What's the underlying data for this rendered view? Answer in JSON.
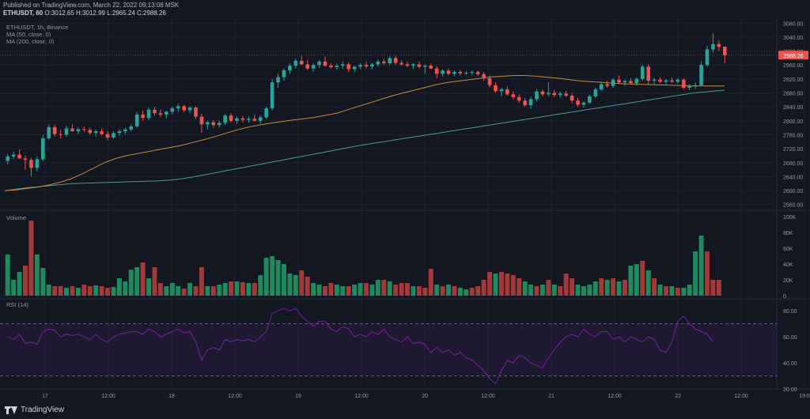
{
  "header": {
    "published": "Published on TradingView.com, March 22, 2022 09:13:08 MSK",
    "symbol": "ETHUSDT, 60",
    "ohlc": "O:3012.65 H:3012.99 L:2965.24 C:2988.26"
  },
  "legend": {
    "symbol": "ETHUSDT, 1h, Binance",
    "ma50": "MA (50, close, 0)",
    "ma200": "MA (200, close, 0)",
    "volume": "Volume",
    "rsi": "RSI (14)"
  },
  "footer": {
    "brand": "TradingView"
  },
  "colors": {
    "up": "#26a69a",
    "down": "#ef5350",
    "ma50": "#c58a3a",
    "ma200": "#4a9a8e",
    "rsi": "#7b1fa2",
    "background": "#131722"
  },
  "chart_data": [
    {
      "type": "candlestick",
      "y_ticks": [
        "3080.00",
        "3040.00",
        "3000.00",
        "2960.00",
        "2920.00",
        "2880.00",
        "2840.00",
        "2800.00",
        "2760.00",
        "2720.00",
        "2680.00",
        "2640.00",
        "2600.00",
        "2560.00"
      ],
      "ylim": [
        2548,
        3092
      ],
      "last_price": "2988.26",
      "candles": [
        [
          2685,
          2705,
          2675,
          2698
        ],
        [
          2698,
          2712,
          2690,
          2703
        ],
        [
          2703,
          2718,
          2697,
          2692
        ],
        [
          2692,
          2700,
          2660,
          2688
        ],
        [
          2688,
          2694,
          2640,
          2665
        ],
        [
          2665,
          2698,
          2655,
          2690
        ],
        [
          2690,
          2760,
          2685,
          2750
        ],
        [
          2750,
          2790,
          2745,
          2782
        ],
        [
          2782,
          2790,
          2755,
          2762
        ],
        [
          2762,
          2775,
          2750,
          2760
        ],
        [
          2760,
          2785,
          2755,
          2778
        ],
        [
          2778,
          2790,
          2768,
          2770
        ],
        [
          2770,
          2782,
          2762,
          2776
        ],
        [
          2776,
          2784,
          2768,
          2774
        ],
        [
          2774,
          2780,
          2760,
          2765
        ],
        [
          2765,
          2775,
          2755,
          2770
        ],
        [
          2770,
          2778,
          2758,
          2762
        ],
        [
          2762,
          2770,
          2745,
          2752
        ],
        [
          2752,
          2770,
          2748,
          2765
        ],
        [
          2765,
          2775,
          2758,
          2770
        ],
        [
          2770,
          2780,
          2762,
          2775
        ],
        [
          2775,
          2790,
          2770,
          2784
        ],
        [
          2784,
          2825,
          2780,
          2818
        ],
        [
          2818,
          2830,
          2800,
          2808
        ],
        [
          2808,
          2838,
          2802,
          2832
        ],
        [
          2832,
          2840,
          2815,
          2822
        ],
        [
          2822,
          2832,
          2810,
          2818
        ],
        [
          2818,
          2830,
          2808,
          2826
        ],
        [
          2826,
          2840,
          2818,
          2836
        ],
        [
          2836,
          2848,
          2825,
          2842
        ],
        [
          2842,
          2846,
          2825,
          2830
        ],
        [
          2830,
          2842,
          2822,
          2838
        ],
        [
          2838,
          2842,
          2805,
          2812
        ],
        [
          2812,
          2820,
          2765,
          2790
        ],
        [
          2790,
          2800,
          2775,
          2796
        ],
        [
          2796,
          2802,
          2780,
          2788
        ],
        [
          2788,
          2800,
          2780,
          2794
        ],
        [
          2794,
          2820,
          2788,
          2815
        ],
        [
          2815,
          2822,
          2795,
          2800
        ],
        [
          2800,
          2812,
          2792,
          2807
        ],
        [
          2807,
          2815,
          2795,
          2803
        ],
        [
          2803,
          2812,
          2795,
          2806
        ],
        [
          2806,
          2818,
          2798,
          2800
        ],
        [
          2800,
          2815,
          2792,
          2810
        ],
        [
          2810,
          2840,
          2805,
          2836
        ],
        [
          2836,
          2920,
          2830,
          2910
        ],
        [
          2910,
          2935,
          2895,
          2925
        ],
        [
          2925,
          2950,
          2915,
          2945
        ],
        [
          2945,
          2965,
          2935,
          2958
        ],
        [
          2958,
          2978,
          2950,
          2972
        ],
        [
          2972,
          2988,
          2960,
          2962
        ],
        [
          2962,
          2975,
          2945,
          2950
        ],
        [
          2950,
          2965,
          2940,
          2960
        ],
        [
          2960,
          2974,
          2952,
          2970
        ],
        [
          2970,
          2985,
          2955,
          2958
        ],
        [
          2958,
          2965,
          2950,
          2954
        ],
        [
          2954,
          2964,
          2946,
          2958
        ],
        [
          2958,
          2970,
          2950,
          2962
        ],
        [
          2962,
          2968,
          2940,
          2948
        ],
        [
          2948,
          2958,
          2940,
          2955
        ],
        [
          2955,
          2965,
          2948,
          2960
        ],
        [
          2960,
          2970,
          2950,
          2956
        ],
        [
          2956,
          2966,
          2948,
          2962
        ],
        [
          2962,
          2975,
          2955,
          2970
        ],
        [
          2970,
          2978,
          2960,
          2965
        ],
        [
          2965,
          2985,
          2960,
          2980
        ],
        [
          2980,
          2986,
          2960,
          2966
        ],
        [
          2966,
          2974,
          2958,
          2962
        ],
        [
          2962,
          2970,
          2954,
          2958
        ],
        [
          2958,
          2966,
          2948,
          2962
        ],
        [
          2962,
          2970,
          2950,
          2955
        ],
        [
          2955,
          2962,
          2935,
          2958
        ],
        [
          2958,
          2964,
          2948,
          2950
        ],
        [
          2950,
          2956,
          2922,
          2935
        ],
        [
          2935,
          2948,
          2928,
          2944
        ],
        [
          2944,
          2950,
          2930,
          2935
        ],
        [
          2935,
          2944,
          2928,
          2940
        ],
        [
          2940,
          2945,
          2930,
          2936
        ],
        [
          2936,
          2942,
          2932,
          2938
        ],
        [
          2938,
          2944,
          2932,
          2940
        ],
        [
          2940,
          2944,
          2928,
          2934
        ],
        [
          2934,
          2940,
          2915,
          2922
        ],
        [
          2922,
          2930,
          2895,
          2902
        ],
        [
          2902,
          2910,
          2880,
          2885
        ],
        [
          2885,
          2895,
          2870,
          2890
        ],
        [
          2890,
          2898,
          2872,
          2876
        ],
        [
          2876,
          2884,
          2862,
          2868
        ],
        [
          2868,
          2876,
          2852,
          2858
        ],
        [
          2858,
          2866,
          2840,
          2845
        ],
        [
          2845,
          2870,
          2835,
          2862
        ],
        [
          2862,
          2890,
          2855,
          2884
        ],
        [
          2884,
          2890,
          2870,
          2876
        ],
        [
          2876,
          2910,
          2870,
          2880
        ],
        [
          2880,
          2888,
          2868,
          2874
        ],
        [
          2874,
          2884,
          2866,
          2878
        ],
        [
          2878,
          2886,
          2868,
          2872
        ],
        [
          2872,
          2880,
          2850,
          2858
        ],
        [
          2858,
          2866,
          2840,
          2846
        ],
        [
          2846,
          2856,
          2838,
          2852
        ],
        [
          2852,
          2875,
          2848,
          2870
        ],
        [
          2870,
          2895,
          2865,
          2890
        ],
        [
          2890,
          2910,
          2885,
          2905
        ],
        [
          2905,
          2915,
          2895,
          2900
        ],
        [
          2900,
          2922,
          2895,
          2918
        ],
        [
          2918,
          2930,
          2905,
          2910
        ],
        [
          2910,
          2918,
          2900,
          2914
        ],
        [
          2914,
          2922,
          2905,
          2908
        ],
        [
          2908,
          2925,
          2902,
          2920
        ],
        [
          2920,
          2960,
          2915,
          2955
        ],
        [
          2955,
          2962,
          2905,
          2915
        ],
        [
          2915,
          2924,
          2905,
          2918
        ],
        [
          2918,
          2925,
          2908,
          2912
        ],
        [
          2912,
          2920,
          2904,
          2916
        ],
        [
          2916,
          2924,
          2908,
          2912
        ],
        [
          2912,
          2922,
          2906,
          2918
        ],
        [
          2918,
          2922,
          2890,
          2895
        ],
        [
          2895,
          2905,
          2888,
          2900
        ],
        [
          2900,
          2910,
          2892,
          2902
        ],
        [
          2902,
          2970,
          2900,
          2960
        ],
        [
          2960,
          3015,
          2955,
          3005
        ],
        [
          3005,
          3050,
          2995,
          3020
        ],
        [
          3020,
          3030,
          3000,
          3012
        ],
        [
          3012.65,
          3012.99,
          2965.24,
          2988.26
        ]
      ],
      "ma50": [
        2600,
        2602,
        2606,
        2610,
        2616,
        2624,
        2634,
        2648,
        2664,
        2680,
        2692,
        2700,
        2706,
        2712,
        2718,
        2724,
        2730,
        2738,
        2746,
        2755,
        2765,
        2774,
        2782,
        2788,
        2793,
        2798,
        2802,
        2806,
        2810,
        2816,
        2822,
        2832,
        2842,
        2852,
        2862,
        2872,
        2880,
        2888,
        2896,
        2904,
        2910,
        2914,
        2918,
        2922,
        2926,
        2928,
        2930,
        2930,
        2928,
        2925,
        2922,
        2918,
        2914,
        2912,
        2910,
        2908,
        2906,
        2905,
        2904,
        2903,
        2902,
        2901,
        2900,
        2900,
        2900,
        2900
      ],
      "ma200": [
        2600,
        2604,
        2608,
        2611,
        2614,
        2617,
        2620,
        2621,
        2622,
        2623,
        2624,
        2625,
        2626,
        2627,
        2628,
        2630,
        2634,
        2639,
        2645,
        2651,
        2657,
        2663,
        2669,
        2675,
        2681,
        2687,
        2693,
        2699,
        2705,
        2711,
        2717,
        2723,
        2729,
        2734,
        2739,
        2744,
        2749,
        2754,
        2759,
        2764,
        2769,
        2774,
        2779,
        2784,
        2789,
        2794,
        2799,
        2804,
        2809,
        2814,
        2819,
        2824,
        2829,
        2834,
        2839,
        2844,
        2849,
        2854,
        2859,
        2864,
        2869,
        2874,
        2879,
        2882,
        2885,
        2888
      ],
      "x_ticks": [
        "17",
        "12:00",
        "18",
        "12:00",
        "19",
        "12:00",
        "20",
        "12:00",
        "21",
        "12:00",
        "22",
        "12:00",
        "19:0"
      ]
    },
    {
      "type": "bar",
      "name": "Volume",
      "y_ticks": [
        "100K",
        "80K",
        "60K",
        "40K",
        "20K",
        "0"
      ],
      "ylim": [
        0,
        100000
      ],
      "values": [
        52000,
        20000,
        30000,
        38000,
        95000,
        52000,
        35000,
        14000,
        12000,
        12000,
        10000,
        12000,
        10000,
        14000,
        12000,
        13000,
        12000,
        10000,
        11000,
        22000,
        18000,
        33000,
        36000,
        42000,
        22000,
        36000,
        16000,
        12000,
        16000,
        12000,
        9000,
        16000,
        12000,
        36000,
        12000,
        12000,
        14000,
        16000,
        18000,
        18000,
        17000,
        16000,
        16000,
        26000,
        48000,
        50000,
        45000,
        40000,
        28000,
        26000,
        32000,
        24000,
        16000,
        14000,
        12000,
        16000,
        14000,
        12000,
        12000,
        14000,
        16000,
        16000,
        14000,
        20000,
        20000,
        18000,
        14000,
        16000,
        16000,
        12000,
        12000,
        10000,
        34000,
        14000,
        12000,
        14000,
        12000,
        10000,
        8000,
        10000,
        12000,
        20000,
        30000,
        28000,
        30000,
        28000,
        26000,
        22000,
        18000,
        14000,
        12000,
        14000,
        20000,
        14000,
        12000,
        28000,
        22000,
        14000,
        12000,
        14000,
        18000,
        22000,
        20000,
        22000,
        18000,
        20000,
        38000,
        40000,
        44000,
        32000,
        22000,
        14000,
        12000,
        12000,
        10000,
        10000,
        14000,
        56000,
        76000,
        56000,
        20000,
        20000
      ],
      "colors_up": [
        1,
        1,
        1,
        0,
        0,
        1,
        1,
        1,
        0,
        0,
        1,
        0,
        1,
        0,
        0,
        1,
        0,
        0,
        1,
        1,
        1,
        1,
        1,
        0,
        1,
        0,
        0,
        1,
        1,
        1,
        0,
        1,
        0,
        0,
        1,
        0,
        1,
        1,
        0,
        1,
        0,
        1,
        0,
        1,
        1,
        1,
        1,
        1,
        1,
        1,
        0,
        0,
        1,
        1,
        0,
        0,
        1,
        1,
        0,
        1,
        1,
        0,
        1,
        1,
        0,
        1,
        0,
        0,
        0,
        1,
        0,
        0,
        0,
        1,
        0,
        1,
        0,
        1,
        1,
        0,
        0,
        0,
        0,
        1,
        0,
        0,
        0,
        0,
        1,
        1,
        0,
        1,
        0,
        1,
        0,
        0,
        0,
        1,
        1,
        1,
        1,
        0,
        1,
        0,
        1,
        0,
        1,
        1,
        0,
        1,
        0,
        1,
        0,
        1,
        0,
        1,
        1,
        1,
        1,
        0,
        0,
        0
      ]
    },
    {
      "type": "line",
      "name": "RSI (14)",
      "y_ticks": [
        "80.00",
        "60.00",
        "40.00",
        "20.00"
      ],
      "ylim": [
        20,
        88
      ],
      "bands": [
        70,
        30
      ],
      "values": [
        60,
        58,
        62,
        55,
        56,
        54,
        64,
        66,
        65,
        60,
        62,
        61,
        62,
        60,
        58,
        62,
        58,
        56,
        60,
        62,
        63,
        64,
        64,
        62,
        66,
        64,
        60,
        62,
        64,
        66,
        63,
        64,
        56,
        42,
        50,
        52,
        50,
        58,
        56,
        58,
        57,
        58,
        56,
        60,
        64,
        78,
        80,
        82,
        80,
        82,
        76,
        72,
        68,
        72,
        72,
        66,
        64,
        68,
        66,
        60,
        62,
        60,
        64,
        62,
        66,
        60,
        58,
        56,
        60,
        55,
        56,
        54,
        48,
        52,
        48,
        50,
        46,
        48,
        44,
        42,
        38,
        34,
        28,
        24,
        34,
        42,
        40,
        46,
        44,
        40,
        38,
        36,
        44,
        50,
        56,
        60,
        62,
        60,
        66,
        62,
        60,
        64,
        64,
        58,
        60,
        56,
        60,
        58,
        56,
        60,
        58,
        50,
        48,
        56,
        72,
        76,
        70,
        66,
        64,
        62,
        56
      ]
    }
  ]
}
